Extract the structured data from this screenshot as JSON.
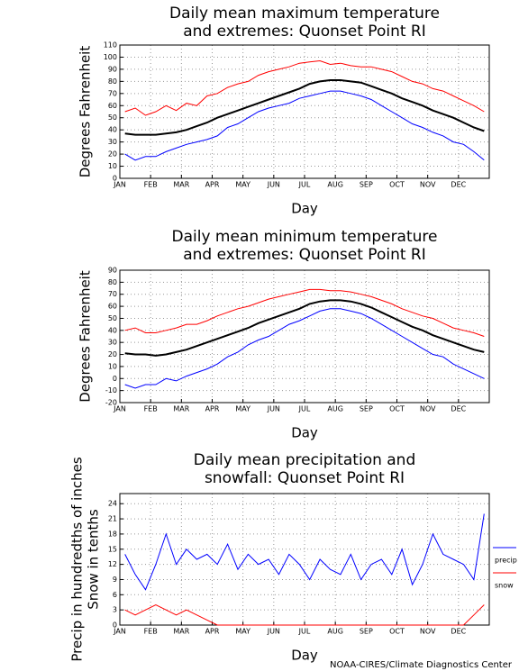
{
  "footer": "NOAA-CIRES/Climate Diagnostics Center",
  "chart_data": [
    {
      "type": "line",
      "title": [
        "Daily mean maximum temperature",
        "and extremes: Quonset Point RI"
      ],
      "xlabel": "Day",
      "ylabel": [
        "Degrees Fahrenheit"
      ],
      "categories": [
        "JAN",
        null,
        null,
        "FEB",
        null,
        null,
        "MAR",
        null,
        null,
        "APR",
        null,
        null,
        "MAY",
        null,
        null,
        "JUN",
        null,
        null,
        "JUL",
        null,
        null,
        "AUG",
        null,
        null,
        "SEP",
        null,
        null,
        "OCT",
        null,
        null,
        "NOV",
        null,
        null,
        "DEC",
        null,
        null
      ],
      "ylim": [
        0,
        110
      ],
      "yticks": [
        0,
        10,
        20,
        30,
        40,
        50,
        60,
        70,
        80,
        90,
        100,
        110
      ],
      "grid": true,
      "series": [
        {
          "color": "#ff0000",
          "values": [
            55,
            58,
            52,
            55,
            60,
            56,
            62,
            60,
            68,
            70,
            75,
            78,
            80,
            85,
            88,
            90,
            92,
            95,
            96,
            97,
            94,
            95,
            93,
            92,
            92,
            90,
            88,
            84,
            80,
            78,
            74,
            72,
            68,
            64,
            60,
            55
          ]
        },
        {
          "color": "#0000ff",
          "values": [
            20,
            15,
            18,
            18,
            22,
            25,
            28,
            30,
            32,
            35,
            42,
            45,
            50,
            55,
            58,
            60,
            62,
            66,
            68,
            70,
            72,
            72,
            70,
            68,
            65,
            60,
            55,
            50,
            45,
            42,
            38,
            35,
            30,
            28,
            22,
            15
          ]
        },
        {
          "color": "#000000",
          "values": [
            37,
            36,
            36,
            36,
            37,
            38,
            40,
            43,
            46,
            50,
            53,
            56,
            59,
            62,
            65,
            68,
            71,
            74,
            78,
            80,
            81,
            81,
            80,
            79,
            76,
            73,
            70,
            66,
            63,
            60,
            56,
            53,
            50,
            46,
            42,
            39
          ]
        }
      ]
    },
    {
      "type": "line",
      "title": [
        "Daily mean minimum temperature",
        "and extremes: Quonset Point RI"
      ],
      "xlabel": "Day",
      "ylabel": [
        "Degrees Fahrenheit"
      ],
      "categories": [
        "JAN",
        null,
        null,
        "FEB",
        null,
        null,
        "MAR",
        null,
        null,
        "APR",
        null,
        null,
        "MAY",
        null,
        null,
        "JUN",
        null,
        null,
        "JUL",
        null,
        null,
        "AUG",
        null,
        null,
        "SEP",
        null,
        null,
        "OCT",
        null,
        null,
        "NOV",
        null,
        null,
        "DEC",
        null,
        null
      ],
      "ylim": [
        -20,
        90
      ],
      "yticks": [
        -20,
        -10,
        0,
        10,
        20,
        30,
        40,
        50,
        60,
        70,
        80,
        90
      ],
      "grid": true,
      "series": [
        {
          "color": "#ff0000",
          "values": [
            40,
            42,
            38,
            38,
            40,
            42,
            45,
            45,
            48,
            52,
            55,
            58,
            60,
            63,
            66,
            68,
            70,
            72,
            74,
            74,
            73,
            73,
            72,
            70,
            68,
            65,
            62,
            58,
            55,
            52,
            50,
            46,
            42,
            40,
            38,
            35
          ]
        },
        {
          "color": "#0000ff",
          "values": [
            -5,
            -8,
            -5,
            -5,
            0,
            -2,
            2,
            5,
            8,
            12,
            18,
            22,
            28,
            32,
            35,
            40,
            45,
            48,
            52,
            56,
            58,
            58,
            56,
            54,
            50,
            45,
            40,
            35,
            30,
            25,
            20,
            18,
            12,
            8,
            4,
            0
          ]
        },
        {
          "color": "#000000",
          "values": [
            21,
            20,
            20,
            19,
            20,
            22,
            24,
            27,
            30,
            33,
            36,
            39,
            42,
            46,
            49,
            52,
            55,
            58,
            62,
            64,
            65,
            65,
            64,
            62,
            59,
            55,
            51,
            47,
            43,
            40,
            36,
            33,
            30,
            27,
            24,
            22
          ]
        }
      ]
    },
    {
      "type": "line",
      "title": [
        "Daily mean precipitation and",
        "snowfall: Quonset Point RI"
      ],
      "xlabel": "Day",
      "ylabel": [
        "Precip in hundredths of inches",
        "Snow in tenths"
      ],
      "categories": [
        "JAN",
        null,
        null,
        "FEB",
        null,
        null,
        "MAR",
        null,
        null,
        "APR",
        null,
        null,
        "MAY",
        null,
        null,
        "JUN",
        null,
        null,
        "JUL",
        null,
        null,
        "AUG",
        null,
        null,
        "SEP",
        null,
        null,
        "OCT",
        null,
        null,
        "NOV",
        null,
        null,
        "DEC",
        null,
        null
      ],
      "ylim": [
        0,
        26
      ],
      "yticks": [
        0,
        3,
        6,
        9,
        12,
        15,
        18,
        21,
        24
      ],
      "grid": true,
      "legend": "right",
      "series": [
        {
          "name": "precip",
          "color": "#0000ff",
          "values": [
            14,
            10,
            7,
            12,
            18,
            12,
            15,
            13,
            14,
            12,
            16,
            11,
            14,
            12,
            13,
            10,
            14,
            12,
            9,
            13,
            11,
            10,
            14,
            9,
            12,
            13,
            10,
            15,
            8,
            12,
            18,
            14,
            13,
            12,
            9,
            22
          ]
        },
        {
          "name": "snow",
          "color": "#ff0000",
          "values": [
            3,
            2,
            3,
            4,
            3,
            2,
            3,
            2,
            1,
            0,
            0,
            0,
            0,
            0,
            0,
            0,
            0,
            0,
            0,
            0,
            0,
            0,
            0,
            0,
            0,
            0,
            0,
            0,
            0,
            0,
            0,
            0,
            0,
            0,
            2,
            4
          ]
        }
      ]
    }
  ]
}
